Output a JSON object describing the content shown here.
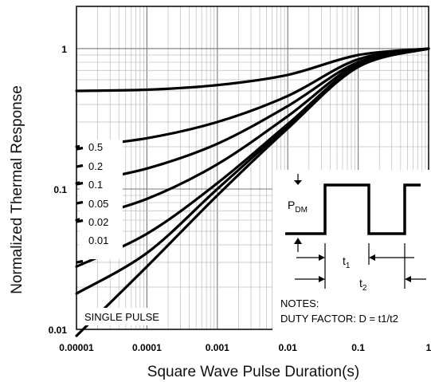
{
  "chart_data": {
    "type": "line",
    "xlabel": "Square Wave Pulse Duration(s)",
    "ylabel": "Normalized Thermal Response",
    "x_scale": "log",
    "y_scale": "log",
    "xlim": [
      1e-05,
      1
    ],
    "ylim": [
      0.01,
      2
    ],
    "x_ticks": [
      "0.00001",
      "0.0001",
      "0.001",
      "0.01",
      "0.1",
      "1"
    ],
    "y_ticks": [
      "0.01",
      "0.1",
      "1"
    ],
    "grid": true,
    "series": [
      {
        "name": "0.5",
        "x": [
          1e-05,
          0.0001,
          0.001,
          0.01,
          0.1,
          1
        ],
        "y": [
          0.5,
          0.51,
          0.55,
          0.65,
          0.9,
          1.0
        ]
      },
      {
        "name": "0.2",
        "x": [
          1e-05,
          0.0001,
          0.001,
          0.01,
          0.1,
          1
        ],
        "y": [
          0.2,
          0.23,
          0.3,
          0.46,
          0.84,
          1.0
        ]
      },
      {
        "name": "0.1",
        "x": [
          1e-05,
          0.0001,
          0.001,
          0.01,
          0.1,
          1
        ],
        "y": [
          0.11,
          0.14,
          0.21,
          0.39,
          0.8,
          1.0
        ]
      },
      {
        "name": "0.05",
        "x": [
          1e-05,
          0.0001,
          0.001,
          0.01,
          0.1,
          1
        ],
        "y": [
          0.06,
          0.085,
          0.15,
          0.33,
          0.78,
          1.0
        ]
      },
      {
        "name": "0.02",
        "x": [
          1e-05,
          0.0001,
          0.001,
          0.01,
          0.1,
          1
        ],
        "y": [
          0.028,
          0.048,
          0.11,
          0.29,
          0.76,
          1.0
        ]
      },
      {
        "name": "0.01",
        "x": [
          1e-05,
          0.0001,
          0.001,
          0.01,
          0.1,
          1
        ],
        "y": [
          0.018,
          0.035,
          0.1,
          0.28,
          0.75,
          1.0
        ]
      },
      {
        "name": "SINGLE PULSE",
        "x": [
          1e-05,
          0.0001,
          0.001,
          0.01,
          0.1,
          1
        ],
        "y": [
          0.009,
          0.028,
          0.09,
          0.27,
          0.74,
          1.0
        ]
      }
    ],
    "annotations": {
      "pdm_label": "P",
      "pdm_sub": "DM",
      "t1_label": "t",
      "t1_sub": "1",
      "t2_label": "t",
      "t2_sub": "2",
      "notes_title": "NOTES:",
      "notes_text": "DUTY FACTOR: D = t1/t2"
    }
  }
}
